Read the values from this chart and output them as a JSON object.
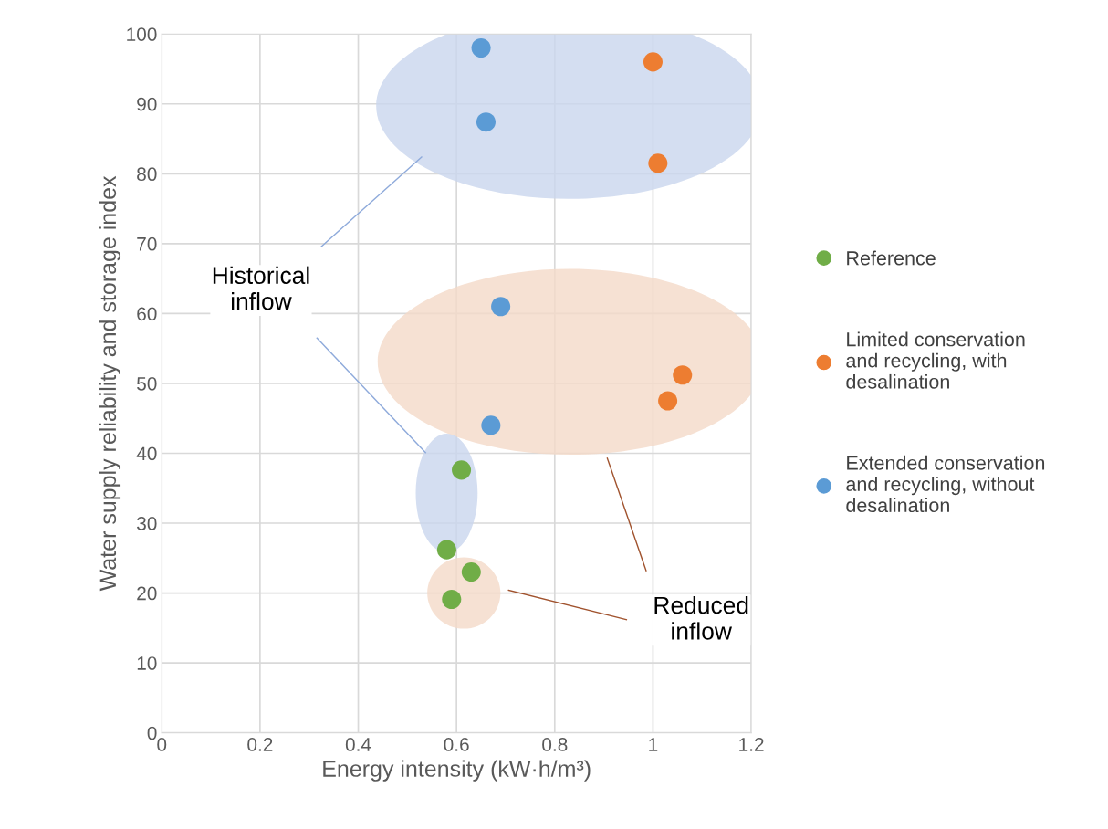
{
  "chart_data": {
    "type": "scatter",
    "xlabel": "Energy intensity (kW·h/m³)",
    "ylabel": "Water supply reliability and storage index",
    "xlim": [
      0,
      1.2
    ],
    "xticks": [
      0,
      0.2,
      0.4,
      0.6,
      0.8,
      1,
      1.2
    ],
    "ylim": [
      0,
      100
    ],
    "yticks": [
      0,
      10,
      20,
      30,
      40,
      50,
      60,
      70,
      80,
      90,
      100
    ],
    "grid": true,
    "legend": "right",
    "marker": "circle",
    "annotations": [
      "Historical\ninflow",
      "Reduced\ninflow"
    ],
    "series": [
      {
        "name": "Reference",
        "color": "#70ad47",
        "x": [
          0.61,
          0.58,
          0.63,
          0.59
        ],
        "values": [
          37.6,
          26.2,
          23,
          19.1
        ]
      },
      {
        "name": "Limited conservation\nand recycling, with\ndesalination",
        "color": "#ed7d31",
        "x": [
          1.0,
          1.01,
          1.06,
          1.03
        ],
        "values": [
          96,
          81.5,
          51.2,
          47.5
        ]
      },
      {
        "name": "Extended conservation\nand recycling, without\ndesalination",
        "color": "#5b9bd5",
        "x": [
          0.65,
          0.66,
          0.69,
          0.67
        ],
        "values": [
          98,
          87.4,
          61,
          44
        ]
      }
    ]
  }
}
